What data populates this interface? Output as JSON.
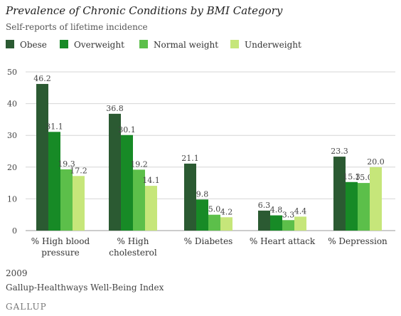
{
  "chart_data": {
    "type": "bar",
    "title": "Prevalence of Chronic Conditions by BMI Category",
    "subtitle": "Self-reports of lifetime incidence",
    "categories": [
      [
        "% High blood",
        "pressure"
      ],
      [
        "% High",
        "cholesterol"
      ],
      [
        "% Diabetes"
      ],
      [
        "% Heart attack"
      ],
      [
        "% Depression"
      ]
    ],
    "series": [
      {
        "name": "Obese",
        "color": "#2b5a32",
        "values": [
          46.2,
          36.8,
          21.1,
          6.3,
          23.3
        ],
        "labels": [
          "46.2",
          "36.8",
          "21.1",
          "6.3",
          "23.3"
        ]
      },
      {
        "name": "Overweight",
        "color": "#178a26",
        "values": [
          31.1,
          30.1,
          9.8,
          4.8,
          15.3
        ],
        "labels": [
          "31.1",
          "30.1",
          "9.8",
          "4.8",
          "15.3"
        ]
      },
      {
        "name": "Normal weight",
        "color": "#5cbf4a",
        "values": [
          19.3,
          19.2,
          5.0,
          3.3,
          15.0
        ],
        "labels": [
          "19.3",
          "19.2",
          "5.0",
          "3.3",
          "15.0"
        ]
      },
      {
        "name": "Underweight",
        "color": "#c6e67a",
        "values": [
          17.2,
          14.1,
          4.2,
          4.4,
          20.0
        ],
        "labels": [
          "17.2",
          "14.1",
          "4.2",
          "4.4",
          "20.0"
        ]
      }
    ],
    "ylim": [
      0,
      50
    ],
    "yticks": [
      0,
      10,
      20,
      30,
      40,
      50
    ],
    "grid": true,
    "legend_position": "top-left",
    "xlabel": "",
    "ylabel": ""
  },
  "footer": {
    "year": "2009",
    "source": "Gallup-Healthways Well-Being Index",
    "logo": "GALLUP"
  }
}
